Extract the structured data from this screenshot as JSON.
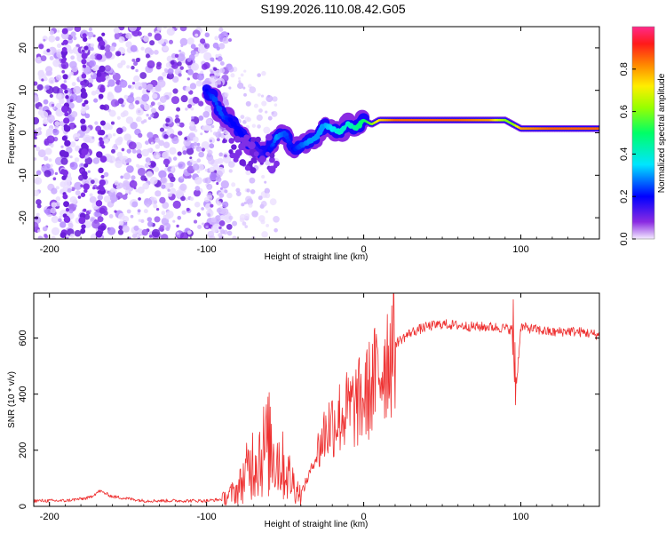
{
  "title": "S199.2026.110.08.42.G05",
  "chart_data": [
    {
      "id": "spectrogram",
      "type": "heatmap",
      "xlabel": "Height of straight line (km)",
      "ylabel": "Frequency (Hz)",
      "xlim": [
        -210,
        150
      ],
      "ylim": [
        -25,
        25
      ],
      "xticks": [
        -200,
        -100,
        0,
        100
      ],
      "yticks": [
        -20,
        -10,
        0,
        10,
        20
      ],
      "colorbar": {
        "label": "Normalized spectral amplitude",
        "range": [
          0,
          1
        ],
        "ticks": [
          "0.0",
          "0.2",
          "0.4",
          "0.6",
          "0.8"
        ]
      },
      "ridge": {
        "x": [
          -100,
          -95,
          -90,
          -85,
          -80,
          -75,
          -70,
          -65,
          -60,
          -55,
          -50,
          -45,
          -40,
          -35,
          -30,
          -25,
          -20,
          -15,
          -10,
          -5,
          0,
          5,
          10,
          20,
          40,
          60,
          80,
          90,
          95,
          100,
          120,
          150
        ],
        "y": [
          10,
          8,
          4,
          3,
          1,
          -2,
          -3,
          -5,
          -4,
          -1,
          0,
          -4,
          -3,
          -2,
          -1,
          2,
          1,
          0,
          2,
          1,
          3,
          2,
          3,
          3,
          3,
          3,
          3,
          3,
          2,
          1,
          1,
          1
        ],
        "amplitude": [
          0.2,
          0.25,
          0.25,
          0.2,
          0.2,
          0.2,
          0.15,
          0.15,
          0.2,
          0.3,
          0.25,
          0.2,
          0.25,
          0.3,
          0.3,
          0.3,
          0.35,
          0.4,
          0.4,
          0.45,
          0.5,
          0.6,
          0.75,
          0.85,
          0.85,
          0.85,
          0.8,
          0.6,
          0.6,
          0.8,
          0.85,
          0.85
        ]
      }
    },
    {
      "id": "snr",
      "type": "line",
      "xlabel": "Height of straight line (km)",
      "ylabel": "SNR (10 * v/v)",
      "xlim": [
        -210,
        150
      ],
      "ylim": [
        0,
        760
      ],
      "xticks": [
        -200,
        -100,
        0,
        100
      ],
      "yticks": [
        0,
        200,
        400,
        600
      ],
      "color": "#ee3030",
      "series": [
        {
          "name": "SNR",
          "x": [
            -210,
            -190,
            -175,
            -168,
            -160,
            -140,
            -120,
            -100,
            -90,
            -80,
            -70,
            -60,
            -50,
            -40,
            -30,
            -25,
            -20,
            -15,
            -10,
            -5,
            0,
            5,
            10,
            15,
            20,
            30,
            40,
            50,
            60,
            70,
            80,
            90,
            95,
            97,
            100,
            110,
            120,
            130,
            140,
            150
          ],
          "y": [
            20,
            20,
            30,
            55,
            35,
            20,
            20,
            20,
            25,
            60,
            170,
            220,
            130,
            40,
            180,
            260,
            300,
            320,
            340,
            360,
            380,
            430,
            480,
            540,
            580,
            620,
            640,
            650,
            645,
            640,
            640,
            635,
            630,
            420,
            640,
            630,
            620,
            625,
            620,
            610
          ]
        }
      ]
    }
  ]
}
